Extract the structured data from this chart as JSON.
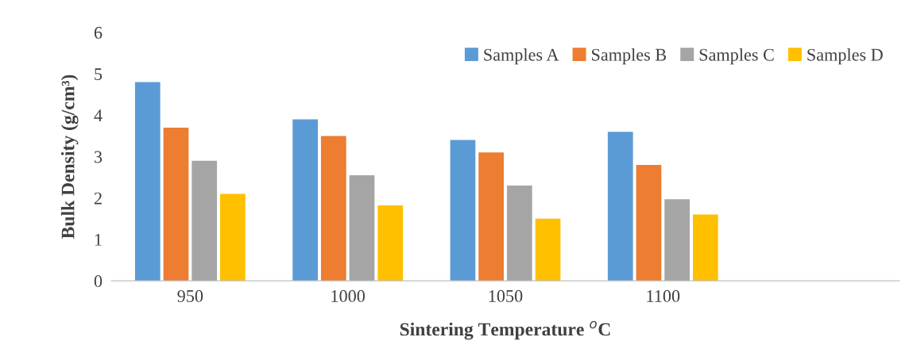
{
  "chart_data": {
    "type": "bar",
    "xlabel": "Sintering Temperature $^{o}$C",
    "ylabel": "Bulk Density (g/cm³)",
    "categories": [
      "950",
      "1000",
      "1050",
      "1100",
      null
    ],
    "series": [
      {
        "name": "Samples A",
        "color": "#5b9bd5",
        "values": [
          4.8,
          3.9,
          3.4,
          3.6,
          null
        ]
      },
      {
        "name": "Samples B",
        "color": "#ed7d31",
        "values": [
          3.7,
          3.5,
          3.1,
          2.8,
          null
        ]
      },
      {
        "name": "Samples C",
        "color": "#a5a5a5",
        "values": [
          2.9,
          2.55,
          2.3,
          1.97,
          null
        ]
      },
      {
        "name": "Samples D",
        "color": "#ffc000",
        "values": [
          2.1,
          1.82,
          1.5,
          1.6,
          null
        ]
      }
    ],
    "ylim": [
      0,
      6
    ],
    "yticks": [
      0,
      1,
      2,
      3,
      4,
      5,
      6
    ],
    "grid": false,
    "legend": "top right"
  }
}
